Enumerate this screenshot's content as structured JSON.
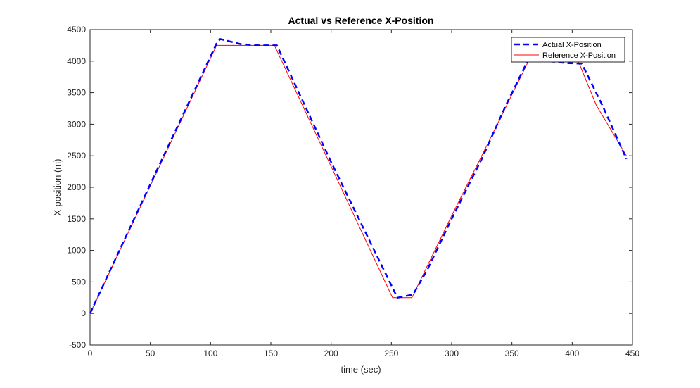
{
  "chart_data": {
    "type": "line",
    "title": "Actual vs Reference X-Position",
    "xlabel": "time (sec)",
    "ylabel": "X-position (m)",
    "xlim": [
      0,
      450
    ],
    "ylim": [
      -500,
      4500
    ],
    "xticks": [
      0,
      50,
      100,
      150,
      200,
      250,
      300,
      350,
      400,
      450
    ],
    "yticks": [
      -500,
      0,
      500,
      1000,
      1500,
      2000,
      2500,
      3000,
      3500,
      4000,
      4500
    ],
    "grid": false,
    "legend_position": "top-right",
    "series": [
      {
        "name": "Actual X-Position",
        "color": "#0000ff",
        "style": "dashed",
        "x": [
          0,
          50,
          105,
          108,
          125,
          140,
          155,
          200,
          255,
          268,
          280,
          300,
          325,
          345,
          365,
          380,
          395,
          408,
          425,
          445
        ],
        "y": [
          0,
          2050,
          4280,
          4350,
          4270,
          4250,
          4250,
          2400,
          250,
          300,
          700,
          1500,
          2450,
          3300,
          4080,
          4000,
          3970,
          3960,
          3300,
          2450
        ]
      },
      {
        "name": "Reference X-Position",
        "color": "#ff0000",
        "style": "solid",
        "x": [
          0,
          105,
          153,
          251,
          267,
          300,
          325,
          365,
          380,
          405,
          420,
          445
        ],
        "y": [
          0,
          4250,
          4250,
          250,
          250,
          1550,
          2500,
          4050,
          4000,
          4000,
          3300,
          2500
        ]
      }
    ]
  }
}
